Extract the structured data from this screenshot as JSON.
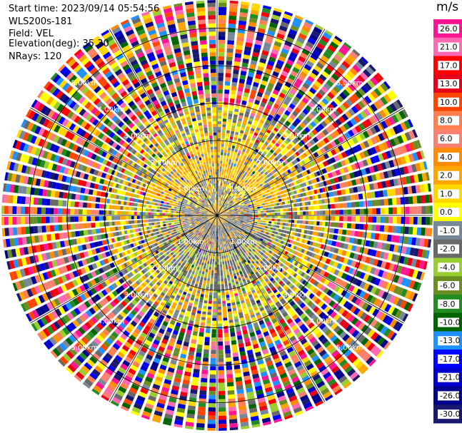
{
  "header": {
    "start_time": "Start time: 2023/09/14 05:54:56",
    "instrument": "WLS200s-181",
    "field": "Field: VEL",
    "elevation": "Elevation(deg): 35.30",
    "nrays": "NRays: 120"
  },
  "colorbar": {
    "unit": "m/s",
    "ticks": [
      "26.0",
      "21.0",
      "17.0",
      "13.0",
      "10.0",
      "8.0",
      "6.0",
      "4.0",
      "2.0",
      "1.0",
      "0.0",
      "-1.0",
      "-2.0",
      "-4.0",
      "-6.0",
      "-8.0",
      "-10.0",
      "-13.0",
      "-17.0",
      "-21.0",
      "-26.0",
      "-30.0"
    ],
    "colors": [
      "#ff1493",
      "#ff69b4",
      "#ff0000",
      "#e6001a",
      "#ff4500",
      "#ff7f50",
      "#fa8072",
      "#ff8c00",
      "#ffa500",
      "#ffd700",
      "#ffff00",
      "#778899",
      "#696969",
      "#9acd32",
      "#6b8e23",
      "#228b22",
      "#006400",
      "#1e90ff",
      "#0000ff",
      "#0000cd",
      "#00008b",
      "#191970"
    ]
  },
  "chart_data": {
    "type": "heatmap",
    "title": "",
    "nrays": 120,
    "range_rings_km": [
      1.0,
      2.0,
      3.0,
      4.0,
      5.0
    ],
    "ring_labels": [
      "1.00km",
      "2.00km",
      "3.00km",
      "4.00km",
      "5.00km"
    ],
    "max_range_km": 5.75,
    "spoke_angles_deg": [
      0,
      30,
      60,
      90,
      120,
      150,
      180,
      210,
      240,
      270,
      300,
      330
    ],
    "pattern_by_range": [
      {
        "range_km": [
          0.0,
          0.3
        ],
        "dominant_mps": [
          2.0,
          -1.0
        ],
        "note": "yellow/gray core"
      },
      {
        "range_km": [
          0.3,
          1.0
        ],
        "dominant_mps": [
          -1.0,
          -2.0,
          1.0
        ],
        "note": "gray and green with yellow"
      },
      {
        "range_km": [
          1.0,
          2.0
        ],
        "dominant_mps": [
          1.0,
          2.0,
          -2.0,
          -4.0
        ],
        "note": "yellow to the north, green to the south"
      },
      {
        "range_km": [
          2.0,
          3.0
        ],
        "dominant_mps": [
          0.0,
          -2.0,
          2.0
        ],
        "note": "gray / green / yellow mixed"
      },
      {
        "range_km": [
          3.0,
          5.75
        ],
        "dominant_mps": "noise",
        "note": "random velocities spanning -30 to 26 m/s"
      }
    ]
  }
}
